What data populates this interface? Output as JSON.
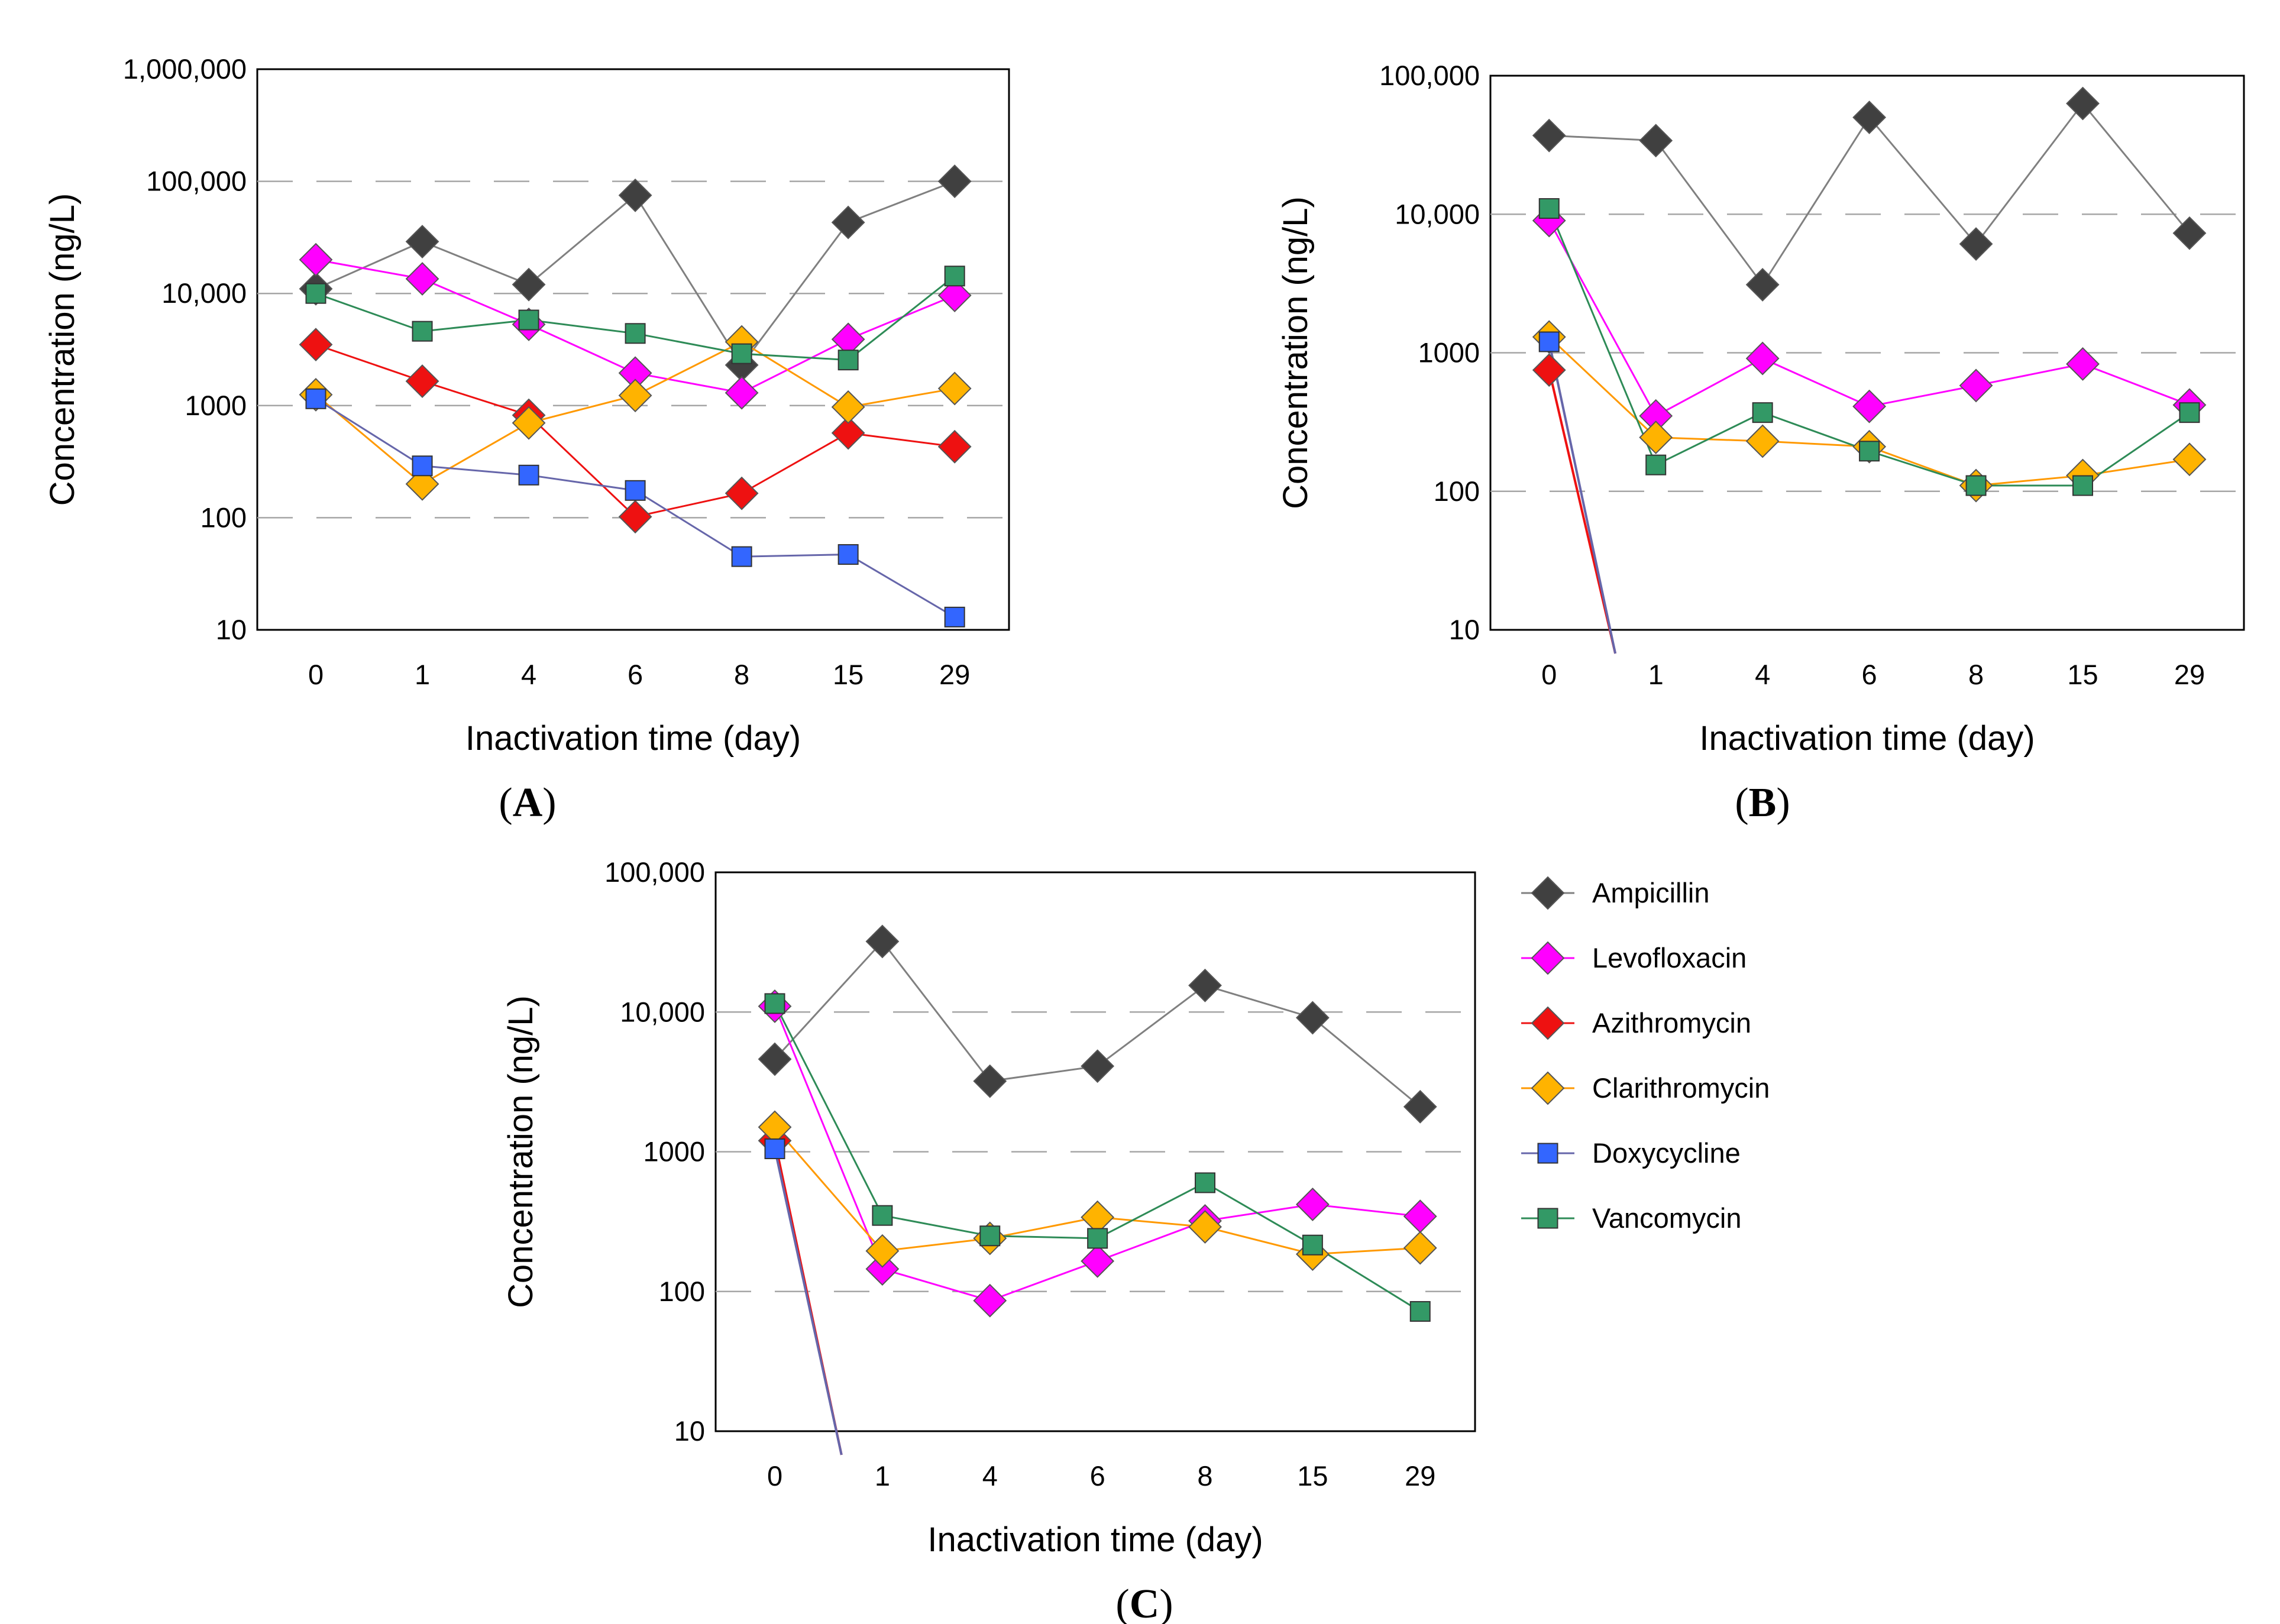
{
  "chart_data": [
    {
      "panel": "A",
      "label_open": "(",
      "label_letter": "A",
      "label_close": ")",
      "type": "line",
      "y_scale": "log",
      "ylim": [
        10,
        1000000
      ],
      "xlabel": "Inactivation time (day)",
      "ylabel": "Concentration (ng/L)",
      "categories": [
        "0",
        "1",
        "4",
        "6",
        "8",
        "15",
        "29"
      ],
      "y_ticks": [
        10,
        100,
        1000,
        10000,
        100000,
        1000000
      ],
      "y_tick_labels": [
        "10",
        "100",
        "1000",
        "10,000",
        "100,000",
        "1,000,000"
      ],
      "grid": true,
      "series": [
        {
          "name": "Ampicillin",
          "values": [
            11000,
            29000,
            12000,
            75000,
            2300,
            43000,
            100000
          ]
        },
        {
          "name": "Levofloxacin",
          "values": [
            20000,
            13500,
            5300,
            1950,
            1300,
            3900,
            9600
          ]
        },
        {
          "name": "Azithromycin",
          "values": [
            3500,
            1650,
            820,
            102,
            165,
            570,
            430
          ]
        },
        {
          "name": "Clarithromycin",
          "values": [
            1250,
            200,
            700,
            1230,
            3700,
            970,
            1420
          ]
        },
        {
          "name": "Doxycycline",
          "values": [
            1150,
            290,
            240,
            175,
            45,
            47,
            13
          ]
        },
        {
          "name": "Vancomycin",
          "values": [
            10000,
            4600,
            5800,
            4400,
            2900,
            2550,
            14300
          ]
        }
      ]
    },
    {
      "panel": "B",
      "label_open": "(",
      "label_letter": "B",
      "label_close": ")",
      "type": "line",
      "y_scale": "log",
      "ylim": [
        10,
        100000
      ],
      "xlabel": "Inactivation time (day)",
      "ylabel": "Concentration (ng/L)",
      "categories": [
        "0",
        "1",
        "4",
        "6",
        "8",
        "15",
        "29"
      ],
      "y_ticks": [
        10,
        100,
        1000,
        10000,
        100000
      ],
      "y_tick_labels": [
        "10",
        "100",
        "1000",
        "10,000",
        "100,000"
      ],
      "grid": true,
      "series": [
        {
          "name": "Ampicillin",
          "values": [
            37000,
            34000,
            3100,
            50000,
            6100,
            63000,
            7300
          ]
        },
        {
          "name": "Levofloxacin",
          "values": [
            9000,
            350,
            910,
            410,
            580,
            830,
            420
          ]
        },
        {
          "name": "Azithromycin",
          "values": [
            750,
            null,
            null,
            null,
            null,
            null,
            null
          ],
          "drop_to_below_axis": true
        },
        {
          "name": "Clarithromycin",
          "values": [
            1300,
            245,
            230,
            210,
            110,
            130,
            170
          ]
        },
        {
          "name": "Doxycycline",
          "values": [
            1200,
            null,
            null,
            null,
            null,
            null,
            null
          ],
          "drop_to_below_axis": true
        },
        {
          "name": "Vancomycin",
          "values": [
            11000,
            155,
            370,
            195,
            110,
            110,
            370
          ]
        }
      ]
    },
    {
      "panel": "C",
      "label_open": "(",
      "label_letter": "C",
      "label_close": ")",
      "type": "line",
      "y_scale": "log",
      "ylim": [
        10,
        100000
      ],
      "xlabel": "Inactivation time (day)",
      "ylabel": "Concentration (ng/L)",
      "categories": [
        "0",
        "1",
        "4",
        "6",
        "8",
        "15",
        "29"
      ],
      "y_ticks": [
        10,
        100,
        1000,
        10000,
        100000
      ],
      "y_tick_labels": [
        "10",
        "100",
        "1000",
        "10,000",
        "100,000"
      ],
      "grid": true,
      "series": [
        {
          "name": "Ampicillin",
          "values": [
            4600,
            32000,
            3200,
            4100,
            15500,
            9100,
            2100
          ]
        },
        {
          "name": "Levofloxacin",
          "values": [
            11000,
            145,
            86,
            165,
            320,
            420,
            345
          ]
        },
        {
          "name": "Azithromycin",
          "values": [
            1200,
            null,
            null,
            null,
            null,
            null,
            null
          ],
          "drop_to_below_axis": true
        },
        {
          "name": "Clarithromycin",
          "values": [
            1500,
            195,
            240,
            340,
            290,
            185,
            205
          ]
        },
        {
          "name": "Doxycycline",
          "values": [
            1050,
            null,
            null,
            null,
            null,
            null,
            null
          ],
          "drop_to_below_axis": true
        },
        {
          "name": "Vancomycin",
          "values": [
            11500,
            350,
            250,
            240,
            600,
            215,
            72
          ]
        }
      ]
    }
  ],
  "legend": {
    "placement": "right of panel C",
    "items": [
      {
        "name": "Ampicillin",
        "marker": "diamond",
        "fill": "#404040",
        "line": "#808080"
      },
      {
        "name": "Levofloxacin",
        "marker": "diamond",
        "fill": "#ff00ff",
        "line": "#ff00ff"
      },
      {
        "name": "Azithromycin",
        "marker": "diamond",
        "fill": "#ee1111",
        "line": "#ee1111"
      },
      {
        "name": "Clarithromycin",
        "marker": "diamond",
        "fill": "#ffb300",
        "line": "#ff9900"
      },
      {
        "name": "Doxycycline",
        "marker": "square",
        "fill": "#3366ff",
        "line": "#6666aa"
      },
      {
        "name": "Vancomycin",
        "marker": "square",
        "fill": "#339966",
        "line": "#2e8b57"
      }
    ]
  }
}
